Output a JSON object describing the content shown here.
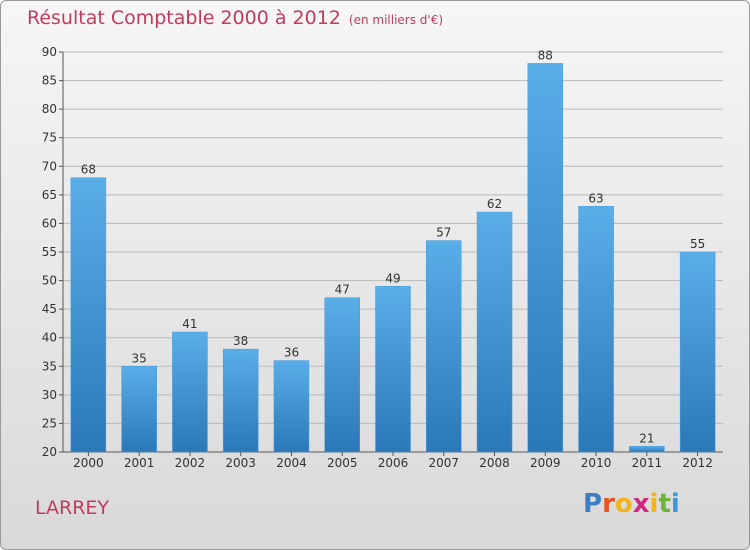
{
  "chart_data": {
    "type": "bar",
    "title": "Résultat Comptable 2000 à 2012",
    "subtitle": "(en milliers d'€)",
    "categories": [
      "2000",
      "2001",
      "2002",
      "2003",
      "2004",
      "2005",
      "2006",
      "2007",
      "2008",
      "2009",
      "2010",
      "2011",
      "2012"
    ],
    "values": [
      68,
      35,
      41,
      38,
      36,
      47,
      49,
      57,
      62,
      88,
      63,
      21,
      55
    ],
    "ylim": [
      20,
      90
    ],
    "yticks": [
      20,
      25,
      30,
      35,
      40,
      45,
      50,
      55,
      60,
      65,
      70,
      75,
      80,
      85,
      90
    ],
    "xlabel": "",
    "ylabel": "",
    "grid": true,
    "bar_color_top": "#5aaee8",
    "bar_color_bottom": "#2a78b8"
  },
  "commune": "LARREY",
  "logo": {
    "letters": [
      "P",
      "r",
      "o",
      "x",
      "i",
      "t",
      "i"
    ],
    "colors": [
      "#3a7fc4",
      "#e8541e",
      "#f2b31b",
      "#d4267e",
      "#f2b31b",
      "#6db33f",
      "#3a9ad9"
    ]
  },
  "colors": {
    "title": "#c23b5b",
    "grid": "#b9b9b9"
  }
}
